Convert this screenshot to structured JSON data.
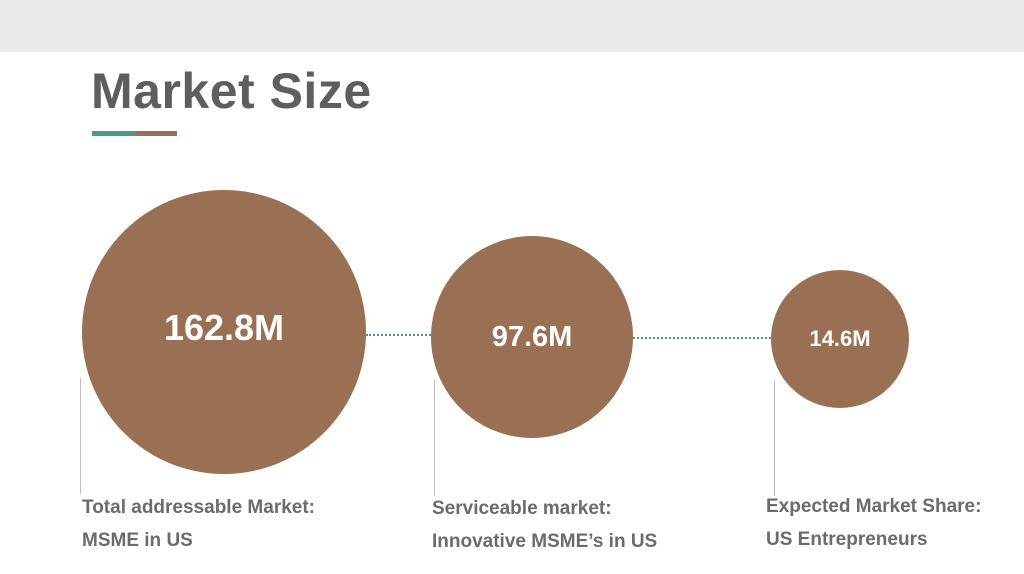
{
  "slide": {
    "title": "Market Size"
  },
  "colors": {
    "circle_fill": "#9a7055",
    "accent_teal": "#4a9a8c",
    "accent_brown": "#9a7055",
    "title_text": "#5e5e5e",
    "label_text": "#6b6b6b",
    "top_band": "#e9ebeb"
  },
  "markets": [
    {
      "value": "162.8M",
      "label_line1": "Total addressable Market:",
      "label_line2": "MSME in US"
    },
    {
      "value": "97.6M",
      "label_line1": "Serviceable market:",
      "label_line2": "Innovative MSME’s in US"
    },
    {
      "value": "14.6M",
      "label_line1": "Expected Market Share:",
      "label_line2": "US Entrepreneurs"
    }
  ]
}
